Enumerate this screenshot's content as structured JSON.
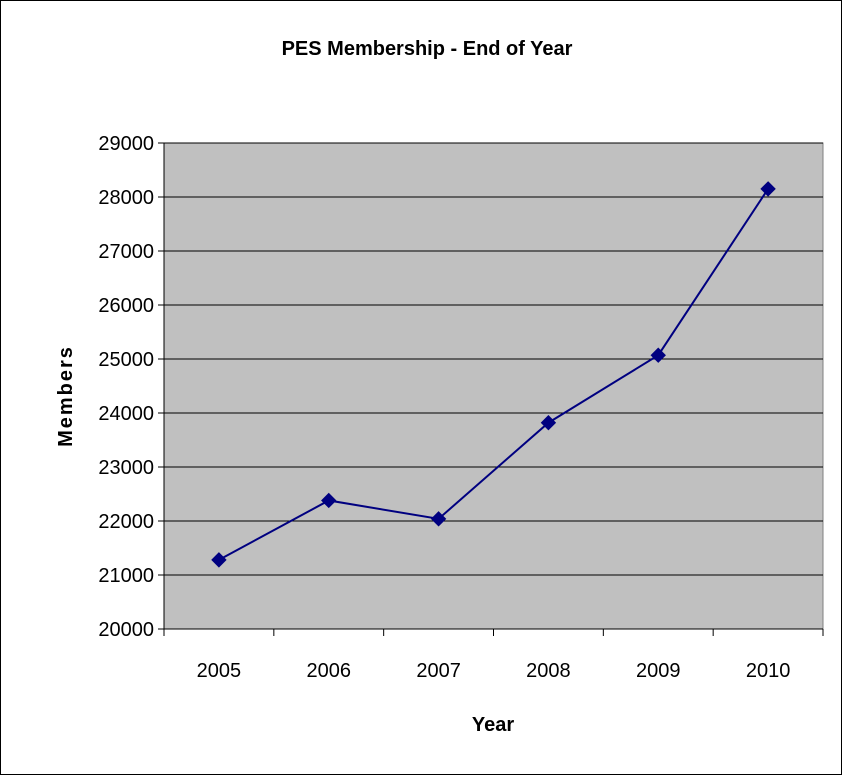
{
  "chart_data": {
    "type": "line",
    "title": "PES Membership - End of Year",
    "xlabel": "Year",
    "ylabel": "Members",
    "categories": [
      "2005",
      "2006",
      "2007",
      "2008",
      "2009",
      "2010"
    ],
    "series": [
      {
        "values": [
          21280,
          22380,
          22040,
          23820,
          25070,
          28150
        ]
      }
    ],
    "ylim": [
      20000,
      29000
    ],
    "yticks": [
      20000,
      21000,
      22000,
      23000,
      24000,
      25000,
      26000,
      27000,
      28000,
      29000
    ],
    "grid": true,
    "legend": "none",
    "colors": {
      "series": "#000080",
      "plot_background": "#c0c0c0",
      "gridline": "#000000"
    }
  }
}
